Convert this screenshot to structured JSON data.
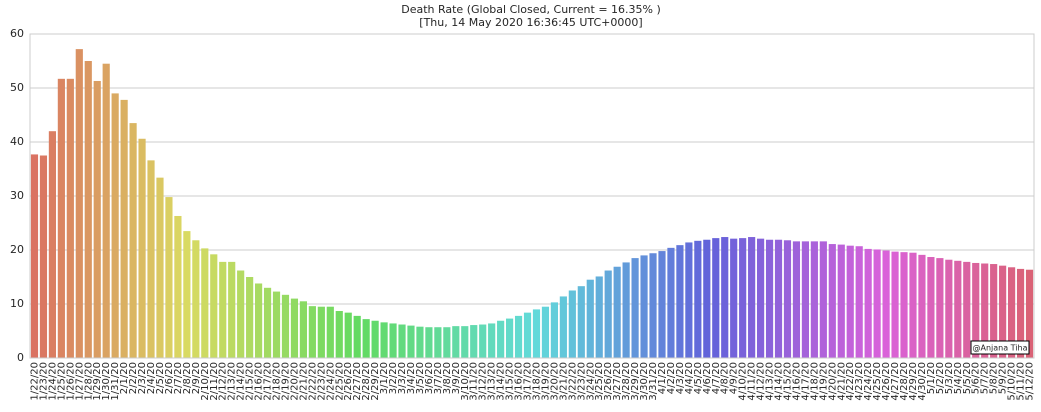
{
  "chart_data": {
    "type": "bar",
    "title": "Death Rate (Global Closed, Current = 16.35% )",
    "subtitle": "[Thu, 14 May 2020 16:36:45 UTC+0000]",
    "annotation": "@Anjana Tiha",
    "palette": "husl",
    "grid": true,
    "categories": [
      "1/22/20",
      "1/23/20",
      "1/24/20",
      "1/25/20",
      "1/26/20",
      "1/27/20",
      "1/28/20",
      "1/29/20",
      "1/30/20",
      "1/31/20",
      "2/1/20",
      "2/2/20",
      "2/3/20",
      "2/4/20",
      "2/5/20",
      "2/6/20",
      "2/7/20",
      "2/8/20",
      "2/9/20",
      "2/10/20",
      "2/11/20",
      "2/12/20",
      "2/13/20",
      "2/14/20",
      "2/15/20",
      "2/16/20",
      "2/17/20",
      "2/18/20",
      "2/19/20",
      "2/20/20",
      "2/21/20",
      "2/22/20",
      "2/23/20",
      "2/24/20",
      "2/25/20",
      "2/26/20",
      "2/27/20",
      "2/28/20",
      "2/29/20",
      "3/1/20",
      "3/2/20",
      "3/3/20",
      "3/4/20",
      "3/5/20",
      "3/6/20",
      "3/7/20",
      "3/8/20",
      "3/9/20",
      "3/10/20",
      "3/11/20",
      "3/12/20",
      "3/13/20",
      "3/14/20",
      "3/15/20",
      "3/16/20",
      "3/17/20",
      "3/18/20",
      "3/19/20",
      "3/20/20",
      "3/21/20",
      "3/22/20",
      "3/23/20",
      "3/24/20",
      "3/25/20",
      "3/26/20",
      "3/27/20",
      "3/28/20",
      "3/29/20",
      "3/30/20",
      "3/31/20",
      "4/1/20",
      "4/2/20",
      "4/3/20",
      "4/4/20",
      "4/5/20",
      "4/6/20",
      "4/7/20",
      "4/8/20",
      "4/9/20",
      "4/10/20",
      "4/11/20",
      "4/12/20",
      "4/13/20",
      "4/14/20",
      "4/15/20",
      "4/16/20",
      "4/17/20",
      "4/18/20",
      "4/19/20",
      "4/20/20",
      "4/21/20",
      "4/22/20",
      "4/23/20",
      "4/24/20",
      "4/25/20",
      "4/26/20",
      "4/27/20",
      "4/28/20",
      "4/29/20",
      "4/30/20",
      "5/1/20",
      "5/2/20",
      "5/3/20",
      "5/4/20",
      "5/5/20",
      "5/6/20",
      "5/7/20",
      "5/8/20",
      "5/9/20",
      "5/10/20",
      "5/11/20",
      "5/12/20"
    ],
    "values": [
      37.7,
      37.5,
      42,
      51.7,
      51.7,
      57.2,
      55,
      51.3,
      54.5,
      49,
      47.8,
      43.5,
      40.6,
      36.6,
      33.4,
      29.8,
      26.3,
      23.5,
      21.8,
      20.3,
      19.2,
      17.8,
      17.8,
      16.2,
      15,
      13.8,
      13,
      12.3,
      11.7,
      11,
      10.5,
      9.6,
      9.5,
      9.5,
      8.7,
      8.4,
      7.8,
      7.2,
      6.9,
      6.6,
      6.4,
      6.2,
      6.0,
      5.8,
      5.7,
      5.7,
      5.7,
      5.9,
      5.9,
      6.1,
      6.2,
      6.4,
      6.9,
      7.3,
      7.8,
      8.4,
      9.0,
      9.5,
      10.3,
      11.4,
      12.5,
      13.3,
      14.5,
      15.1,
      16.2,
      16.9,
      17.7,
      18.5,
      19.0,
      19.4,
      19.8,
      20.4,
      20.9,
      21.4,
      21.7,
      21.9,
      22.2,
      22.4,
      22.1,
      22.2,
      22.4,
      22.1,
      21.9,
      21.9,
      21.8,
      21.6,
      21.6,
      21.6,
      21.6,
      21.1,
      21.0,
      20.8,
      20.7,
      20.2,
      20.1,
      19.9,
      19.7,
      19.6,
      19.5,
      19.1,
      18.7,
      18.5,
      18.2,
      18.0,
      17.8,
      17.6,
      17.5,
      17.4,
      17.1,
      16.8,
      16.5,
      16.35
    ],
    "ylim": [
      0,
      60
    ],
    "yticks": [
      0,
      10,
      20,
      30,
      40,
      50,
      60
    ]
  }
}
